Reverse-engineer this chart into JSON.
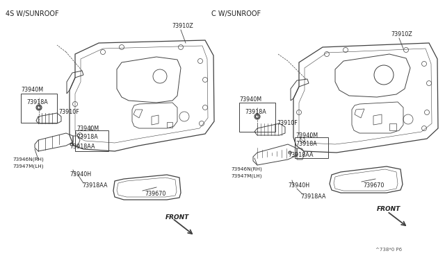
{
  "bg_color": "#ffffff",
  "line_color": "#404040",
  "label_color": "#202020",
  "title_left": "4S W/SUNROOF",
  "title_right": "C W/SUNROOF",
  "watermark": "^738*0 P6",
  "font_size_title": 7.0,
  "font_size_label": 5.8,
  "font_size_label_sm": 5.2
}
